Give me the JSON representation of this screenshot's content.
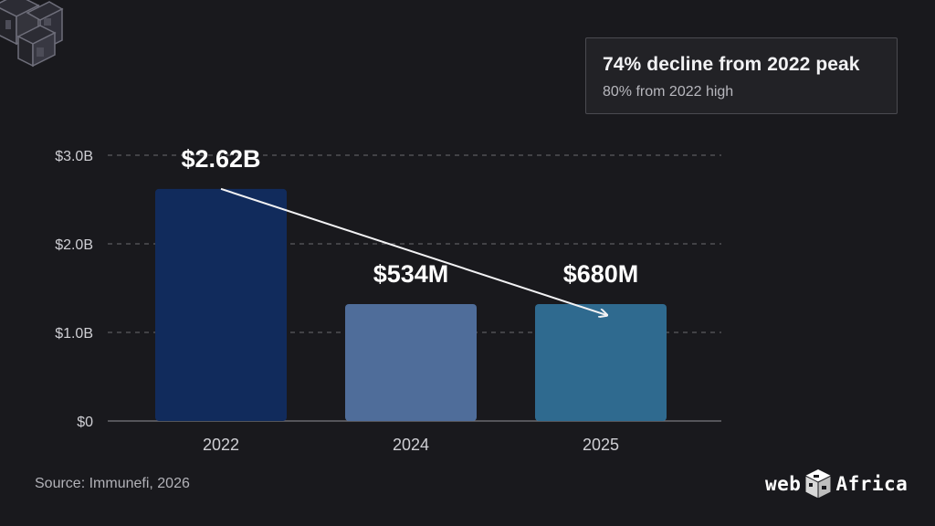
{
  "chart_data": {
    "type": "bar",
    "categories": [
      "2022",
      "2024",
      "2025"
    ],
    "values": [
      2.62,
      0.534,
      0.68
    ],
    "data_labels": [
      "$2.62B",
      "$534M",
      "$680M"
    ],
    "y_ticks": [
      {
        "value": 0,
        "label": "$0"
      },
      {
        "value": 1.0,
        "label": "$1.0B"
      },
      {
        "value": 2.0,
        "label": "$2.0B"
      },
      {
        "value": 3.0,
        "label": "$3.0B"
      }
    ],
    "ylim": [
      0,
      3.0
    ],
    "grid": true,
    "bar_colors": [
      "#112b5c",
      "#4f6d9a",
      "#2f6a8f"
    ],
    "trend_arrow": {
      "from": "2022",
      "to": "2025"
    },
    "xlabel": "",
    "ylabel": "",
    "title": ""
  },
  "callout": {
    "title": "74% decline from 2022 peak",
    "subtitle": "80% from 2022 high"
  },
  "source": "Source: Immunefi, 2026",
  "brand": {
    "prefix": "web",
    "suffix": "Africa",
    "icon": "cube-logo-icon"
  },
  "colors": {
    "background": "#19191d",
    "grid": "#6a6a70",
    "arrow": "#f2f2f4"
  }
}
